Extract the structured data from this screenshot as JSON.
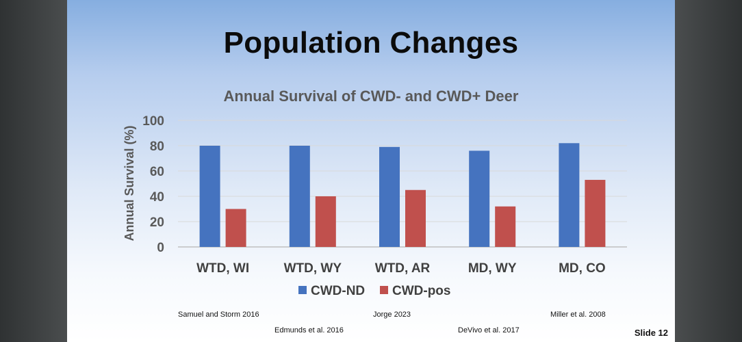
{
  "slide": {
    "title": "Population Changes",
    "slide_number": "Slide 12",
    "citations": [
      "Samuel and Storm 2016",
      "Edmunds et al. 2016",
      "Jorge 2023",
      "DeVivo et al. 2017",
      "Miller et al. 2008"
    ]
  },
  "chart_data": {
    "type": "bar",
    "title": "Annual Survival of CWD- and CWD+ Deer",
    "xlabel": "",
    "ylabel": "Annual Survival (%)",
    "categories": [
      "WTD, WI",
      "WTD, WY",
      "WTD, AR",
      "MD, WY",
      "MD, CO"
    ],
    "series": [
      {
        "name": "CWD-ND",
        "color": "#4573bf",
        "values": [
          80,
          80,
          79,
          76,
          82
        ]
      },
      {
        "name": "CWD-pos",
        "color": "#c0504d",
        "values": [
          30,
          40,
          45,
          32,
          53
        ]
      }
    ],
    "ylim": [
      0,
      100
    ],
    "yticks": [
      0,
      20,
      40,
      60,
      80,
      100
    ],
    "grid": true,
    "legend": "bottom"
  }
}
